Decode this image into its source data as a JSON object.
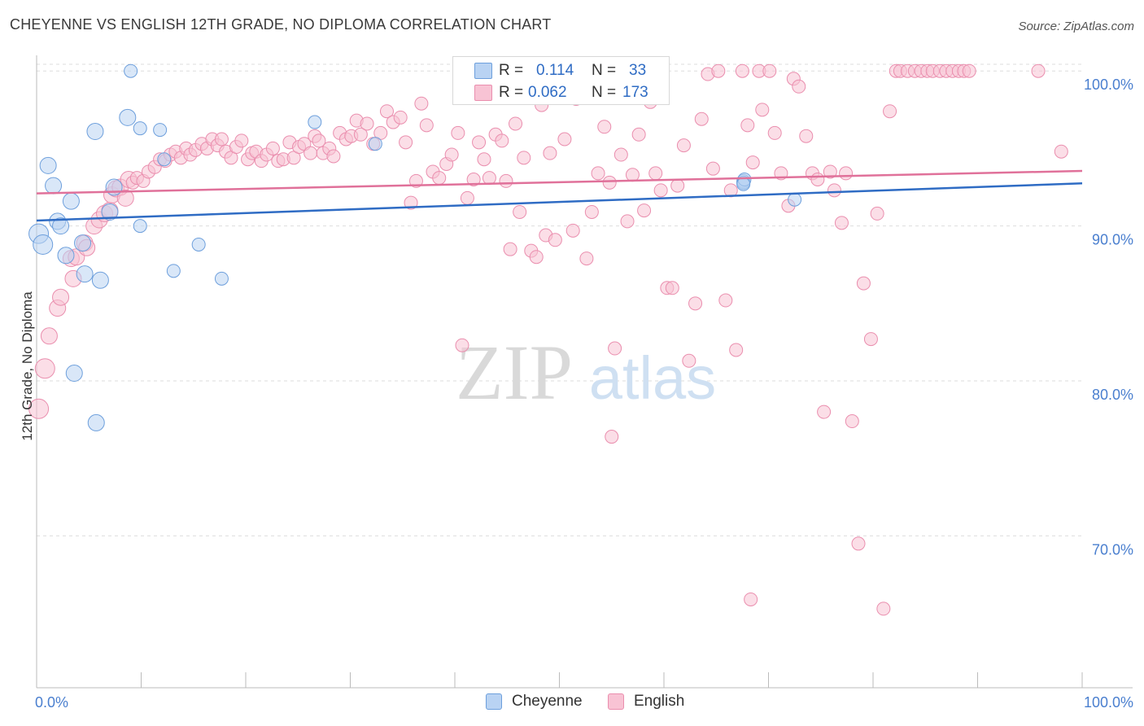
{
  "header": {
    "title": "CHEYENNE VS ENGLISH 12TH GRADE, NO DIPLOMA CORRELATION CHART",
    "source": "Source: ZipAtlas.com"
  },
  "watermark": {
    "zip": "ZIP",
    "atlas": "atlas"
  },
  "stats": {
    "cheyenne": {
      "r_label": "R =",
      "r_value": "0.114",
      "n_label": "N =",
      "n_value": "33"
    },
    "english": {
      "r_label": "R =",
      "r_value": "0.062",
      "n_label": "N =",
      "n_value": "173"
    }
  },
  "legend": {
    "cheyenne": "Cheyenne",
    "english": "English"
  },
  "colors": {
    "cheyenne_fill": "#b9d3f3",
    "cheyenne_stroke": "#6d9fdc",
    "cheyenne_line": "#2f6cc4",
    "english_fill": "#f8c3d4",
    "english_stroke": "#ea8eae",
    "english_line": "#e0719a",
    "tick_label": "#4a7fcf",
    "grid": "#dddddd"
  },
  "chart_data": {
    "type": "scatter",
    "title": "CHEYENNE VS ENGLISH 12TH GRADE, NO DIPLOMA CORRELATION CHART",
    "xlabel": "",
    "ylabel": "12th Grade, No Diploma",
    "xlim": [
      0,
      100
    ],
    "ylim": [
      60.2,
      100.8
    ],
    "x_tick_labels": [
      "0.0%",
      "100.0%"
    ],
    "y_ticks": [
      70,
      80,
      90,
      100
    ],
    "y_tick_labels": [
      "70.0%",
      "80.0%",
      "90.0%",
      "100.0%"
    ],
    "grid": true,
    "series": [
      {
        "name": "Cheyenne",
        "regression": {
          "x": [
            0,
            100
          ],
          "y": [
            90.35,
            92.75
          ]
        },
        "points": [
          [
            0.2,
            89.5
          ],
          [
            0.6,
            88.8
          ],
          [
            1.1,
            93.9
          ],
          [
            1.6,
            92.6
          ],
          [
            2.0,
            90.3
          ],
          [
            2.3,
            90.0
          ],
          [
            2.8,
            88.1
          ],
          [
            3.3,
            91.6
          ],
          [
            3.6,
            80.5
          ],
          [
            4.4,
            88.9
          ],
          [
            4.6,
            86.9
          ],
          [
            5.6,
            96.1
          ],
          [
            5.7,
            77.3
          ],
          [
            6.1,
            86.5
          ],
          [
            7.0,
            90.9
          ],
          [
            7.4,
            92.5
          ],
          [
            8.7,
            97.0
          ],
          [
            9.0,
            100.0
          ],
          [
            9.9,
            96.3
          ],
          [
            9.9,
            90.0
          ],
          [
            11.8,
            96.2
          ],
          [
            12.2,
            94.3
          ],
          [
            13.1,
            87.1
          ],
          [
            15.5,
            88.8
          ],
          [
            17.7,
            86.6
          ],
          [
            26.6,
            96.7
          ],
          [
            32.4,
            95.3
          ],
          [
            67.6,
            92.8
          ],
          [
            72.5,
            91.7
          ],
          [
            67.6,
            92.9
          ],
          [
            67.6,
            92.8
          ],
          [
            67.7,
            93.0
          ],
          [
            67.6,
            92.7
          ]
        ]
      },
      {
        "name": "English",
        "regression": {
          "x": [
            0,
            100
          ],
          "y": [
            92.1,
            93.55
          ]
        },
        "points": [
          [
            0.2,
            78.2
          ],
          [
            0.8,
            80.8
          ],
          [
            1.2,
            82.9
          ],
          [
            2.0,
            84.7
          ],
          [
            2.3,
            85.4
          ],
          [
            3.3,
            87.9
          ],
          [
            3.5,
            86.6
          ],
          [
            3.8,
            88.0
          ],
          [
            4.6,
            88.9
          ],
          [
            4.8,
            88.6
          ],
          [
            5.5,
            90.0
          ],
          [
            6.0,
            90.4
          ],
          [
            6.5,
            90.8
          ],
          [
            7.0,
            91.0
          ],
          [
            7.2,
            92.0
          ],
          [
            7.6,
            92.4
          ],
          [
            8.0,
            92.5
          ],
          [
            8.5,
            91.8
          ],
          [
            8.8,
            93.0
          ],
          [
            9.2,
            92.8
          ],
          [
            9.6,
            93.1
          ],
          [
            10.2,
            92.9
          ],
          [
            10.7,
            93.5
          ],
          [
            11.3,
            93.8
          ],
          [
            11.8,
            94.3
          ],
          [
            12.3,
            94.2
          ],
          [
            12.8,
            94.6
          ],
          [
            13.3,
            94.8
          ],
          [
            13.8,
            94.4
          ],
          [
            14.3,
            95.0
          ],
          [
            14.7,
            94.6
          ],
          [
            15.2,
            94.9
          ],
          [
            15.8,
            95.3
          ],
          [
            16.3,
            95.0
          ],
          [
            16.8,
            95.6
          ],
          [
            17.3,
            95.2
          ],
          [
            17.7,
            95.6
          ],
          [
            18.1,
            94.8
          ],
          [
            18.6,
            94.4
          ],
          [
            19.1,
            95.1
          ],
          [
            19.6,
            95.5
          ],
          [
            20.2,
            94.3
          ],
          [
            20.6,
            94.7
          ],
          [
            21.0,
            94.8
          ],
          [
            21.5,
            94.2
          ],
          [
            22.0,
            94.6
          ],
          [
            22.6,
            95.0
          ],
          [
            23.1,
            94.2
          ],
          [
            23.6,
            94.3
          ],
          [
            24.2,
            95.4
          ],
          [
            24.6,
            94.4
          ],
          [
            25.1,
            95.1
          ],
          [
            25.6,
            95.3
          ],
          [
            26.2,
            94.7
          ],
          [
            26.6,
            95.8
          ],
          [
            27.0,
            95.5
          ],
          [
            27.4,
            94.7
          ],
          [
            28.0,
            95.0
          ],
          [
            28.4,
            94.5
          ],
          [
            29.0,
            96.0
          ],
          [
            29.6,
            95.6
          ],
          [
            30.1,
            95.8
          ],
          [
            30.6,
            96.8
          ],
          [
            31.0,
            95.9
          ],
          [
            31.6,
            96.6
          ],
          [
            32.2,
            95.3
          ],
          [
            32.9,
            96.0
          ],
          [
            33.5,
            97.4
          ],
          [
            34.1,
            96.7
          ],
          [
            34.8,
            97.0
          ],
          [
            35.3,
            95.4
          ],
          [
            35.8,
            91.5
          ],
          [
            36.3,
            92.9
          ],
          [
            36.8,
            97.9
          ],
          [
            37.3,
            96.5
          ],
          [
            37.9,
            93.5
          ],
          [
            38.5,
            93.1
          ],
          [
            39.2,
            94.0
          ],
          [
            39.7,
            94.6
          ],
          [
            40.3,
            96.0
          ],
          [
            40.7,
            82.3
          ],
          [
            41.2,
            91.8
          ],
          [
            41.8,
            93.0
          ],
          [
            42.3,
            95.4
          ],
          [
            42.8,
            94.3
          ],
          [
            43.3,
            93.1
          ],
          [
            43.9,
            95.9
          ],
          [
            44.5,
            95.5
          ],
          [
            44.9,
            92.9
          ],
          [
            45.3,
            88.5
          ],
          [
            45.8,
            96.6
          ],
          [
            46.2,
            90.9
          ],
          [
            46.6,
            94.4
          ],
          [
            47.3,
            88.4
          ],
          [
            47.8,
            88.0
          ],
          [
            48.3,
            97.8
          ],
          [
            48.7,
            89.4
          ],
          [
            49.1,
            94.7
          ],
          [
            49.6,
            89.1
          ],
          [
            50.5,
            95.6
          ],
          [
            51.3,
            89.7
          ],
          [
            51.6,
            98.2
          ],
          [
            52.6,
            87.9
          ],
          [
            53.1,
            90.9
          ],
          [
            53.7,
            93.4
          ],
          [
            54.3,
            96.4
          ],
          [
            54.8,
            92.8
          ],
          [
            55.3,
            82.1
          ],
          [
            55.9,
            94.6
          ],
          [
            56.5,
            90.3
          ],
          [
            57.0,
            93.3
          ],
          [
            57.6,
            95.9
          ],
          [
            58.1,
            91.0
          ],
          [
            58.7,
            98.0
          ],
          [
            59.2,
            93.4
          ],
          [
            59.7,
            92.3
          ],
          [
            60.3,
            86.0
          ],
          [
            60.8,
            86.0
          ],
          [
            61.3,
            92.6
          ],
          [
            61.9,
            95.2
          ],
          [
            62.4,
            81.3
          ],
          [
            63.0,
            85.0
          ],
          [
            63.6,
            96.9
          ],
          [
            64.2,
            99.8
          ],
          [
            64.7,
            93.7
          ],
          [
            65.2,
            100.0
          ],
          [
            65.9,
            85.2
          ],
          [
            66.4,
            92.3
          ],
          [
            66.9,
            82.0
          ],
          [
            67.5,
            100.0
          ],
          [
            68.0,
            96.5
          ],
          [
            68.5,
            94.1
          ],
          [
            69.1,
            100.0
          ],
          [
            69.4,
            97.5
          ],
          [
            70.1,
            100.0
          ],
          [
            70.6,
            96.0
          ],
          [
            71.2,
            93.4
          ],
          [
            71.9,
            91.3
          ],
          [
            72.4,
            99.5
          ],
          [
            72.9,
            99.0
          ],
          [
            73.6,
            95.8
          ],
          [
            74.2,
            93.4
          ],
          [
            74.7,
            93.0
          ],
          [
            75.3,
            78.0
          ],
          [
            75.9,
            93.5
          ],
          [
            76.3,
            92.3
          ],
          [
            77.0,
            90.2
          ],
          [
            77.4,
            93.4
          ],
          [
            78.0,
            77.4
          ],
          [
            78.6,
            69.5
          ],
          [
            79.1,
            86.3
          ],
          [
            79.8,
            82.7
          ],
          [
            80.4,
            90.8
          ],
          [
            81.0,
            65.3
          ],
          [
            81.6,
            97.4
          ],
          [
            82.2,
            100.0
          ],
          [
            82.6,
            100.0
          ],
          [
            83.3,
            100.0
          ],
          [
            84.0,
            100.0
          ],
          [
            84.6,
            100.0
          ],
          [
            85.2,
            100.0
          ],
          [
            85.7,
            100.0
          ],
          [
            86.4,
            100.0
          ],
          [
            87.0,
            100.0
          ],
          [
            87.6,
            100.0
          ],
          [
            88.2,
            100.0
          ],
          [
            88.7,
            100.0
          ],
          [
            89.2,
            100.0
          ],
          [
            98.0,
            94.8
          ],
          [
            68.3,
            65.9
          ],
          [
            55.0,
            76.4
          ],
          [
            95.8,
            100.0
          ]
        ]
      }
    ]
  }
}
